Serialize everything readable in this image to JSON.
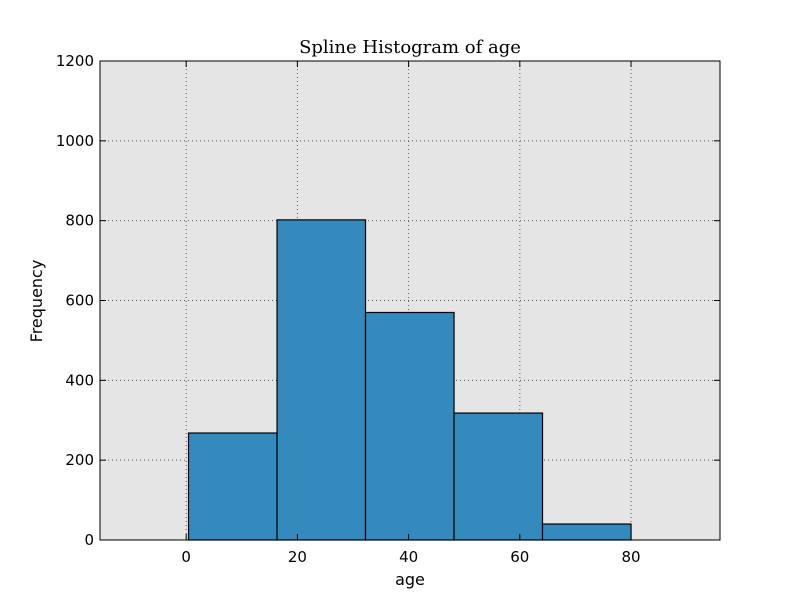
{
  "chart_data": {
    "type": "bar",
    "title": "Spline Histogram of age",
    "xlabel": "age",
    "ylabel": "Frequency",
    "bins": [
      {
        "start": 0.42,
        "end": 16.34,
        "value": 268
      },
      {
        "start": 16.34,
        "end": 32.25,
        "value": 802
      },
      {
        "start": 32.25,
        "end": 48.17,
        "value": 570
      },
      {
        "start": 48.17,
        "end": 64.08,
        "value": 318
      },
      {
        "start": 64.08,
        "end": 80.0,
        "value": 40
      }
    ],
    "xlim": [
      -15.5,
      96
    ],
    "ylim": [
      0,
      1200
    ],
    "xticks": [
      0,
      20,
      40,
      60,
      80
    ],
    "yticks": [
      0,
      200,
      400,
      600,
      800,
      1000,
      1200
    ],
    "grid": true,
    "colors": {
      "bar_fill": "#348abd",
      "bar_edge": "#000000",
      "plot_background": "#e5e5e5",
      "grid": "#555555"
    }
  }
}
